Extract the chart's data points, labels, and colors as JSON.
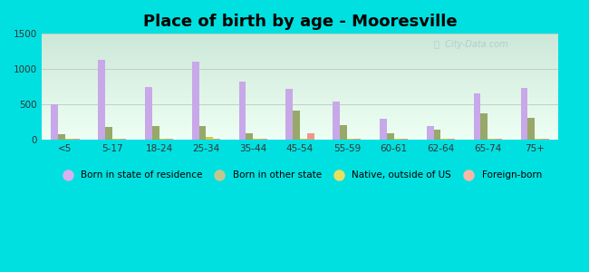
{
  "title": "Place of birth by age - Mooresville",
  "categories": [
    "<5",
    "5-17",
    "18-24",
    "25-34",
    "35-44",
    "45-54",
    "55-59",
    "60-61",
    "62-64",
    "65-74",
    "75+"
  ],
  "series": {
    "Born in state of residence": [
      500,
      1130,
      740,
      1110,
      820,
      720,
      535,
      290,
      195,
      655,
      730
    ],
    "Born in other state": [
      75,
      175,
      195,
      190,
      90,
      415,
      205,
      90,
      140,
      370,
      310
    ],
    "Native, outside of US": [
      15,
      15,
      15,
      40,
      15,
      15,
      15,
      15,
      15,
      15,
      15
    ],
    "Foreign-born": [
      10,
      15,
      10,
      15,
      15,
      90,
      10,
      10,
      10,
      10,
      10
    ]
  },
  "colors": {
    "Born in state of residence": "#c8a8e8",
    "Born in other state": "#98a868",
    "Native, outside of US": "#d8c840",
    "Foreign-born": "#f09888"
  },
  "legend_colors": {
    "Born in state of residence": "#d8b0f0",
    "Born in other state": "#c0c890",
    "Native, outside of US": "#e8e060",
    "Foreign-born": "#f8b8a8"
  },
  "ylim": [
    0,
    1500
  ],
  "yticks": [
    0,
    500,
    1000,
    1500
  ],
  "background_color": "#00e0e0",
  "plot_bg_top": "#cce8d8",
  "plot_bg_bottom": "#eefff4",
  "grid_color": "#b8d4c4",
  "bar_width": 0.15,
  "title_fontsize": 13,
  "legend_fontsize": 7.5,
  "tick_fontsize": 7.5
}
